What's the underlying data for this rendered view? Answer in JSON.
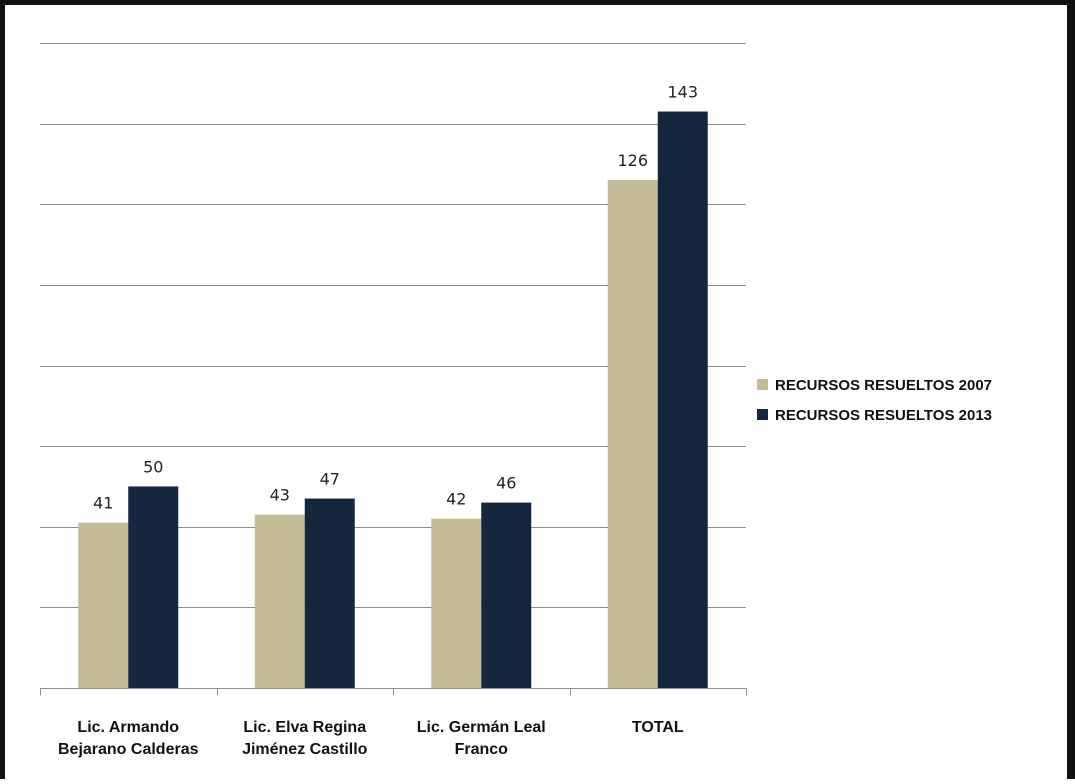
{
  "chart_data": {
    "type": "bar",
    "title": "",
    "xlabel": "",
    "ylabel": "",
    "categories": [
      [
        "Lic. Armando",
        "Bejarano Calderas"
      ],
      [
        "Lic. Elva Regina",
        "Jiménez Castillo"
      ],
      [
        "Lic. Germán Leal",
        "Franco"
      ],
      [
        "TOTAL"
      ]
    ],
    "series": [
      {
        "name": "RECURSOS RESUELTOS 2007",
        "values": [
          41,
          43,
          42,
          126
        ],
        "color": "#c4bc96"
      },
      {
        "name": "RECURSOS RESUELTOS 2013",
        "values": [
          50,
          47,
          46,
          143
        ],
        "color": "#14273f"
      }
    ],
    "ylim": [
      0,
      160
    ],
    "gridlines": [
      0,
      20,
      40,
      60,
      80,
      100,
      120,
      140,
      160
    ],
    "y_tick_labels_shown": false,
    "grid": true,
    "legend_position": "right",
    "data_labels": true
  }
}
